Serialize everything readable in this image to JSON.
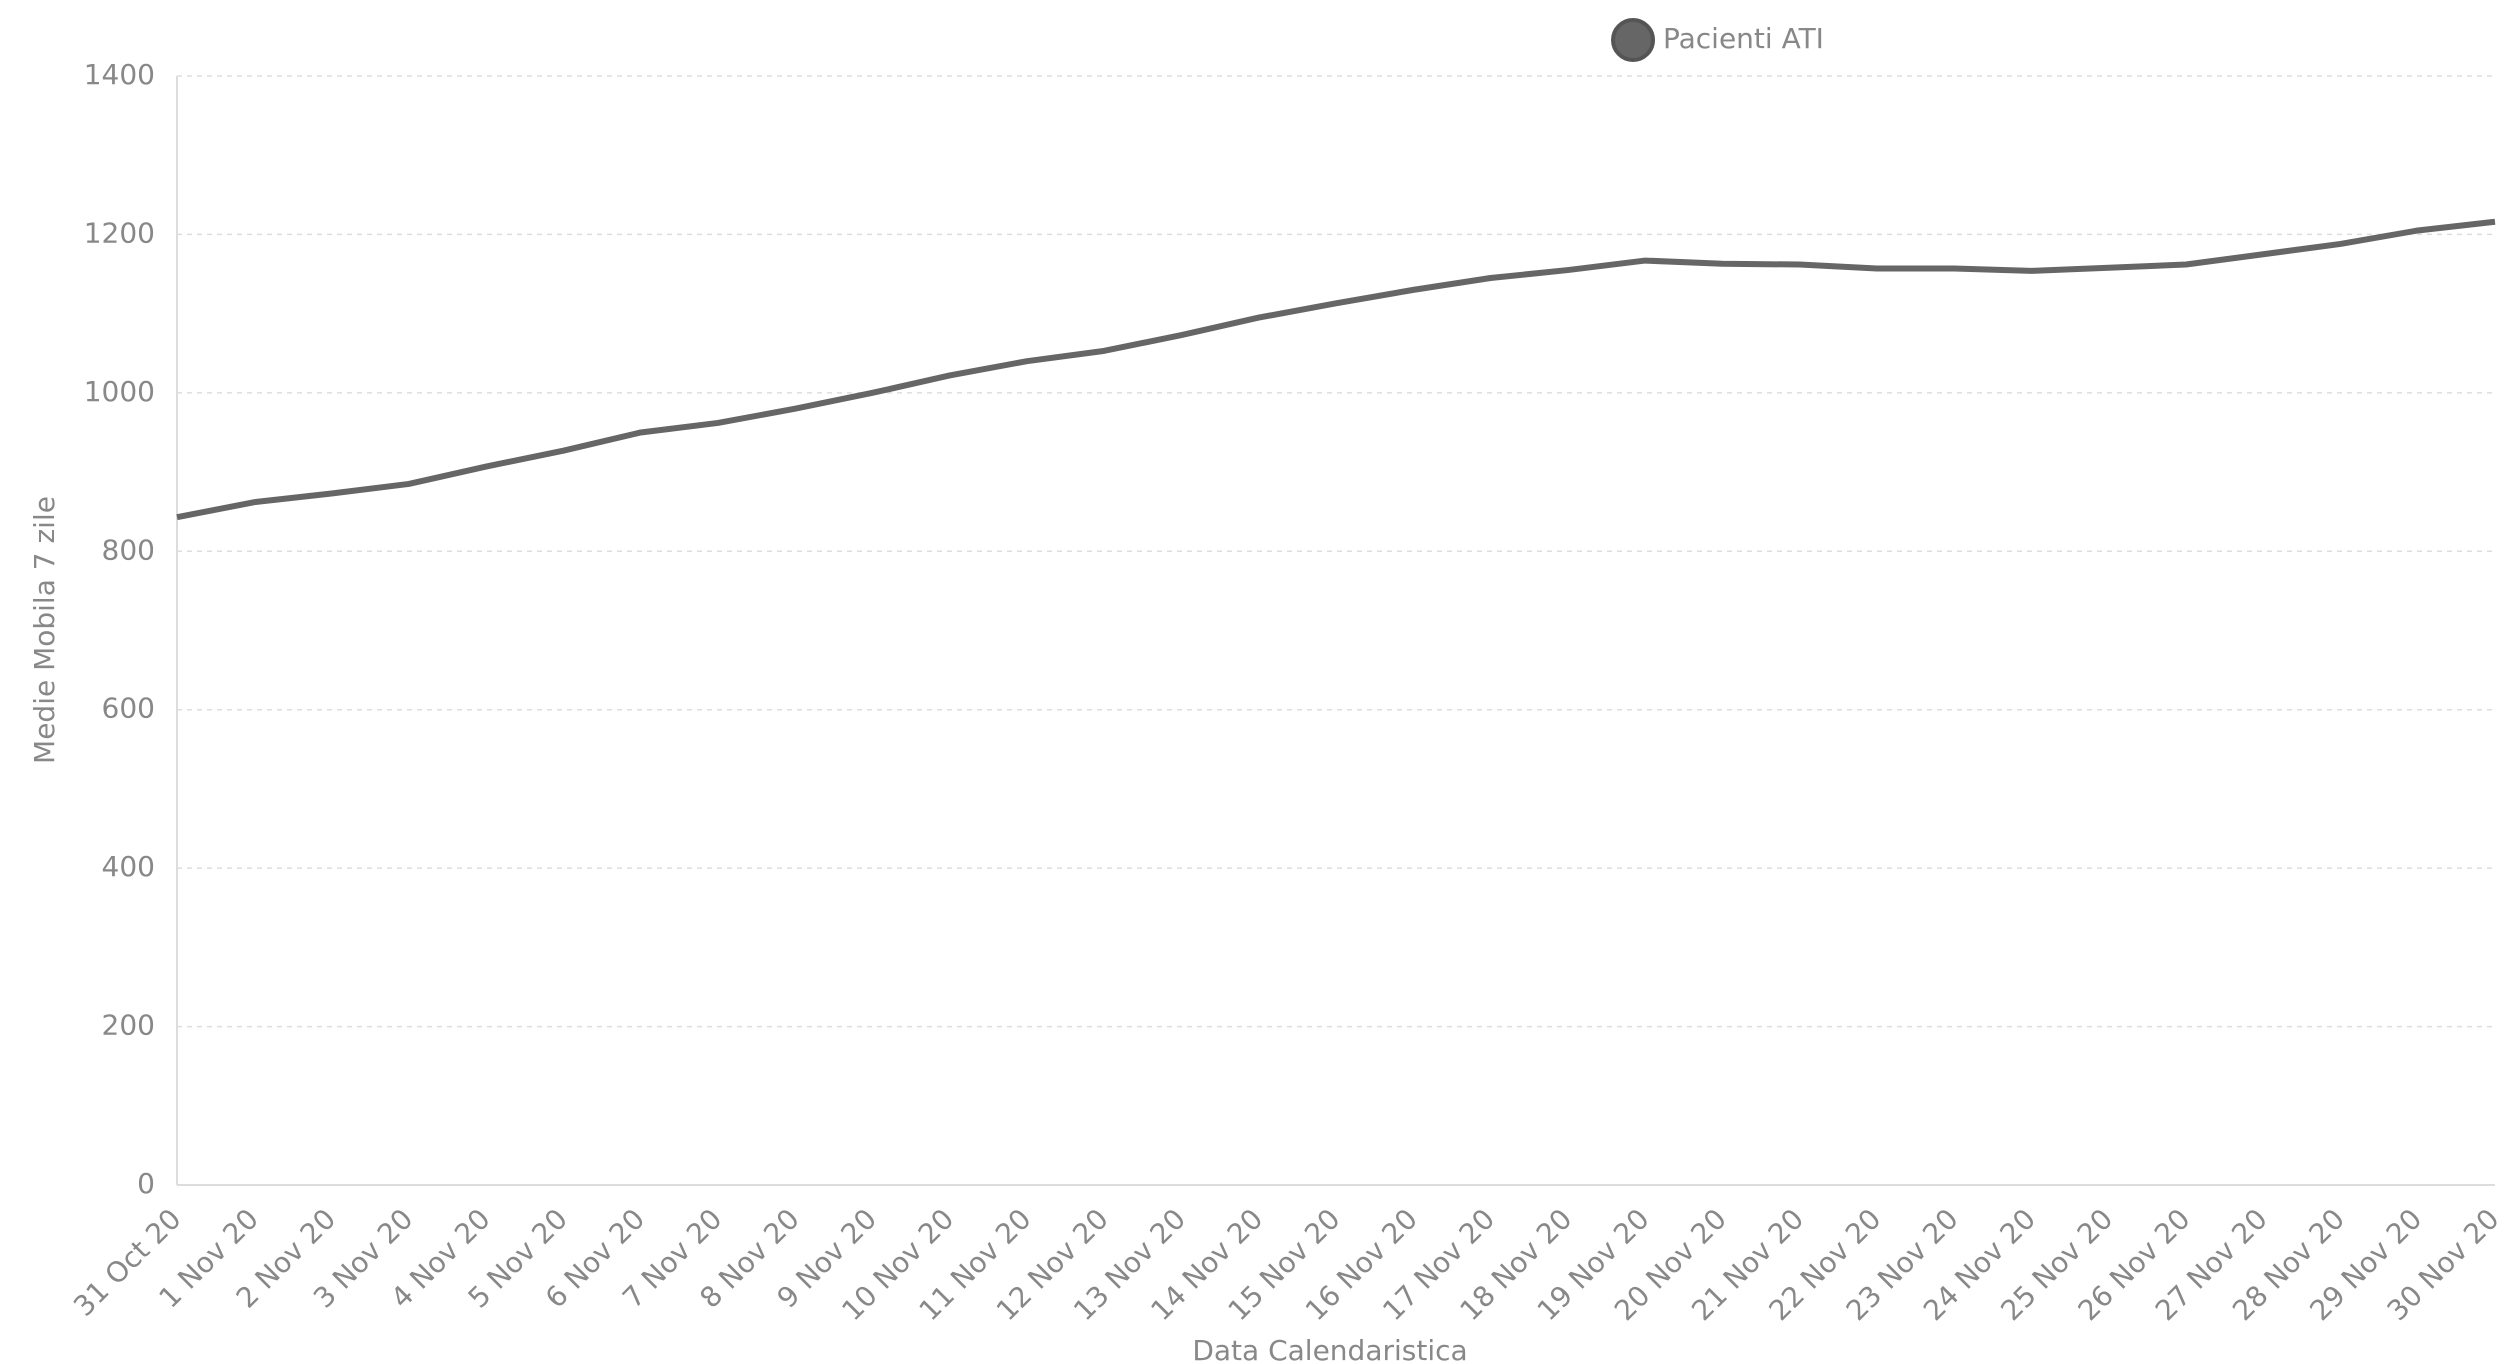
{
  "chart_data": {
    "type": "line",
    "x_label": "Data Calendaristica",
    "y_label": "Medie Mobila 7 zile",
    "categories": [
      "31 Oct 20",
      "1 Nov 20",
      "2 Nov 20",
      "3 Nov 20",
      "4 Nov 20",
      "5 Nov 20",
      "6 Nov 20",
      "7 Nov 20",
      "8 Nov 20",
      "9 Nov 20",
      "10 Nov 20",
      "11 Nov 20",
      "12 Nov 20",
      "13 Nov 20",
      "14 Nov 20",
      "15 Nov 20",
      "16 Nov 20",
      "17 Nov 20",
      "18 Nov 20",
      "19 Nov 20",
      "20 Nov 20",
      "21 Nov 20",
      "22 Nov 20",
      "23 Nov 20",
      "24 Nov 20",
      "25 Nov 20",
      "26 Nov 20",
      "27 Nov 20",
      "28 Nov 20",
      "29 Nov 20",
      "30 Nov 20"
    ],
    "series": [
      {
        "name": "Pacienti ATI",
        "color": "#666666",
        "values": [
          843,
          862,
          873,
          885,
          907,
          927,
          950,
          962,
          980,
          1000,
          1022,
          1040,
          1053,
          1073,
          1095,
          1113,
          1130,
          1145,
          1155,
          1167,
          1163,
          1162,
          1157,
          1157,
          1154,
          1158,
          1162,
          1175,
          1188,
          1205,
          1216
        ]
      }
    ],
    "ylim": [
      0,
      1400
    ],
    "yticks": [
      0,
      200,
      400,
      600,
      800,
      1000,
      1200,
      1400
    ],
    "grid": true,
    "legend": "top"
  }
}
